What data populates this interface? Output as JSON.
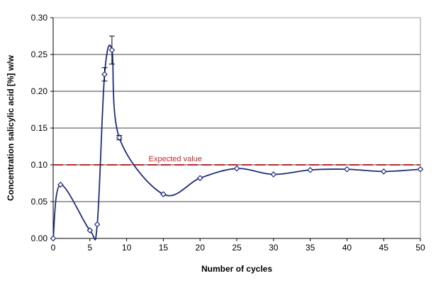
{
  "chart_data": {
    "type": "line",
    "title": "",
    "xlabel": "Number of cycles",
    "ylabel": "Concentration salicylic acid [%] w/w",
    "xlim": [
      0,
      50
    ],
    "ylim": [
      0,
      0.3
    ],
    "x_ticks": [
      "0",
      "5",
      "10",
      "15",
      "20",
      "25",
      "30",
      "35",
      "40",
      "45",
      "50"
    ],
    "y_ticks": [
      "0.00",
      "0.05",
      "0.10",
      "0.15",
      "0.20",
      "0.25",
      "0.30"
    ],
    "grid": "horizontal",
    "series": [
      {
        "color": "#1f2d7a",
        "marker": "diamond",
        "x": [
          0,
          1,
          5,
          6,
          7,
          8,
          9,
          15,
          20,
          25,
          30,
          35,
          40,
          45,
          50
        ],
        "y": [
          0.0,
          0.073,
          0.011,
          0.019,
          0.223,
          0.256,
          0.137,
          0.06,
          0.082,
          0.095,
          0.087,
          0.093,
          0.094,
          0.091,
          0.094
        ]
      }
    ],
    "error_bars": [
      {
        "x": 7,
        "y": 0.223,
        "err": 0.009
      },
      {
        "x": 8,
        "y": 0.256,
        "err": 0.019
      },
      {
        "x": 9,
        "y": 0.137,
        "err": 0.003
      }
    ],
    "reference_line": {
      "y": 0.1,
      "label": "Expected value",
      "color": "#c0282d",
      "style": "dashed"
    }
  }
}
